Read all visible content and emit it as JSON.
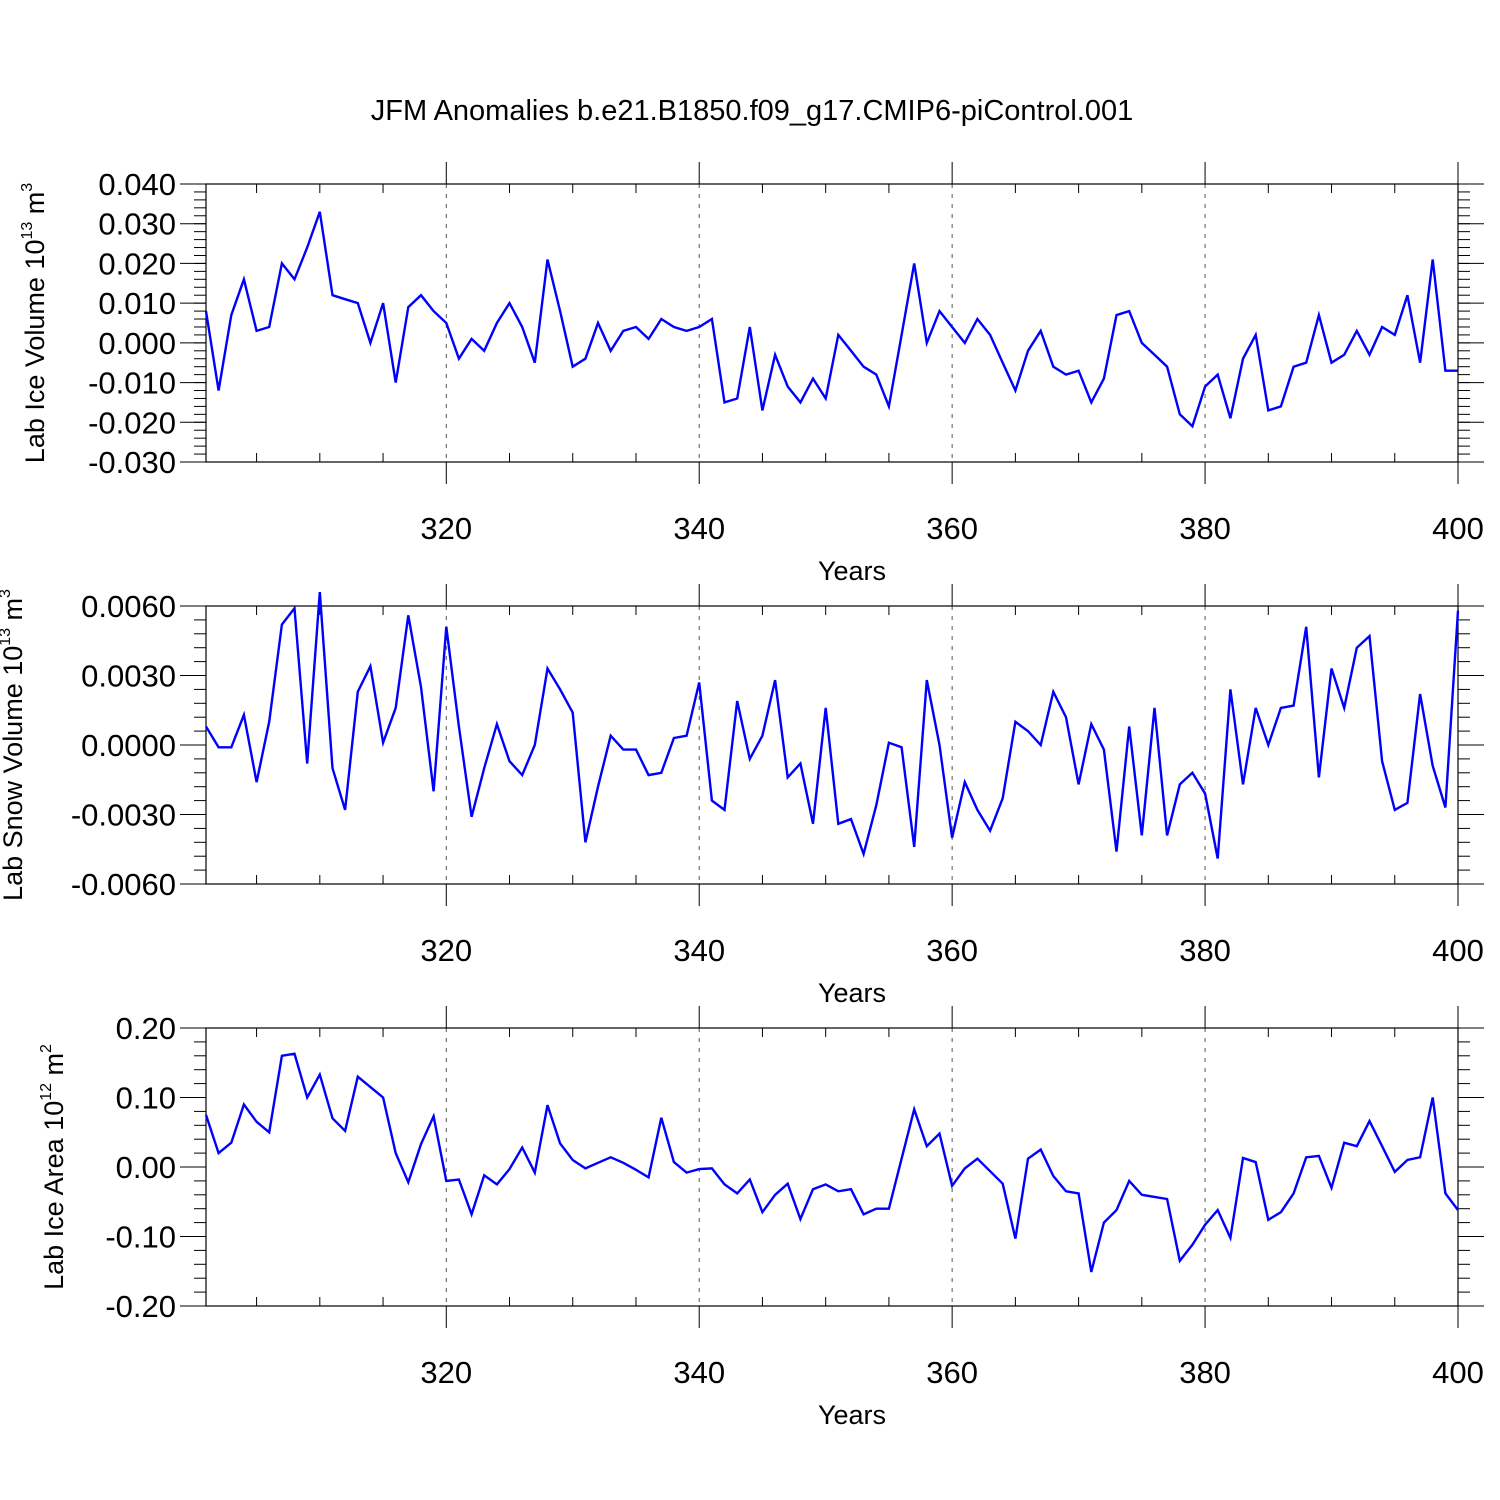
{
  "title": "JFM Anomalies b.e21.B1850.f09_g17.CMIP6-piControl.001",
  "colors": {
    "series": "#0000ff",
    "axis": "#000000",
    "grid": "#555555",
    "background": "#ffffff"
  },
  "chart_data": [
    {
      "type": "line",
      "title": "JFM Anomalies b.e21.B1850.f09_g17.CMIP6-piControl.001",
      "xlabel": "Years",
      "ylabel": {
        "text": "Lab Ice Volume 10",
        "sup": "13",
        "unit": " m",
        "unit_sup": "3"
      },
      "xlim": [
        301,
        400
      ],
      "ylim": [
        -0.03,
        0.04
      ],
      "xticks": [
        320,
        340,
        360,
        380,
        400
      ],
      "yticks": [
        0.04,
        0.03,
        0.02,
        0.01,
        0.0,
        -0.01,
        -0.02,
        -0.03
      ],
      "ytick_labels": [
        "0.040",
        "0.030",
        "0.020",
        "0.010",
        "0.000",
        "-0.010",
        "-0.020",
        "-0.030"
      ],
      "grid": "vertical dashed at major x ticks",
      "series": [
        {
          "start_year": 301,
          "values": [
            0.008,
            -0.012,
            0.007,
            0.016,
            0.003,
            0.004,
            0.02,
            0.016,
            0.024,
            0.033,
            0.012,
            0.011,
            0.01,
            0.0,
            0.01,
            -0.01,
            0.009,
            0.012,
            0.008,
            0.005,
            -0.004,
            0.001,
            -0.002,
            0.005,
            0.01,
            0.004,
            -0.005,
            0.021,
            0.008,
            -0.006,
            -0.004,
            0.005,
            -0.002,
            0.003,
            0.004,
            0.001,
            0.006,
            0.004,
            0.003,
            0.004,
            0.006,
            -0.015,
            -0.014,
            0.004,
            -0.017,
            -0.003,
            -0.011,
            -0.015,
            -0.009,
            -0.014,
            0.002,
            -0.002,
            -0.006,
            -0.008,
            -0.016,
            0.002,
            0.02,
            0.0,
            0.008,
            0.004,
            0.0,
            0.006,
            0.002,
            -0.005,
            -0.012,
            -0.002,
            0.003,
            -0.006,
            -0.008,
            -0.007,
            -0.015,
            -0.009,
            0.007,
            0.008,
            0.0,
            -0.003,
            -0.006,
            -0.018,
            -0.021,
            -0.011,
            -0.008,
            -0.019,
            -0.004,
            0.002,
            -0.017,
            -0.016,
            -0.006,
            -0.005,
            0.007,
            -0.005,
            -0.003,
            0.003,
            -0.003,
            0.004,
            0.002,
            0.012,
            -0.005,
            0.021,
            -0.007,
            -0.007
          ]
        }
      ]
    },
    {
      "type": "line",
      "xlabel": "Years",
      "ylabel": {
        "text": "Lab Snow Volume 10",
        "sup": "13",
        "unit": " m",
        "unit_sup": "3"
      },
      "xlim": [
        301,
        400
      ],
      "ylim": [
        -0.006,
        0.006
      ],
      "xticks": [
        320,
        340,
        360,
        380,
        400
      ],
      "yticks": [
        0.006,
        0.003,
        0.0,
        -0.003,
        -0.006
      ],
      "ytick_labels": [
        "0.0060",
        "0.0030",
        "0.0000",
        "-0.0030",
        "-0.0060"
      ],
      "grid": "vertical dashed at major x ticks",
      "series": [
        {
          "start_year": 301,
          "values": [
            0.0008,
            -0.0001,
            -0.0001,
            0.0013,
            -0.0016,
            0.001,
            0.0052,
            0.0059,
            -0.0008,
            0.0066,
            -0.001,
            -0.0028,
            0.0023,
            0.0034,
            0.0001,
            0.0016,
            0.0056,
            0.0025,
            -0.002,
            0.0051,
            0.0008,
            -0.0031,
            -0.001,
            0.0009,
            -0.0007,
            -0.0013,
            0.0,
            0.0033,
            0.0024,
            0.0014,
            -0.0042,
            -0.0018,
            0.0004,
            -0.0002,
            -0.0002,
            -0.0013,
            -0.0012,
            0.0003,
            0.0004,
            0.0027,
            -0.0024,
            -0.0028,
            0.0019,
            -0.0006,
            0.0004,
            0.0028,
            -0.0014,
            -0.0008,
            -0.0034,
            0.0016,
            -0.0034,
            -0.0032,
            -0.0047,
            -0.0026,
            0.0001,
            -0.0001,
            -0.0044,
            0.0028,
            0.0,
            -0.004,
            -0.0016,
            -0.0028,
            -0.0037,
            -0.0023,
            0.001,
            0.0006,
            0.0,
            0.0023,
            0.0012,
            -0.0017,
            0.0009,
            -0.0002,
            -0.0046,
            0.0008,
            -0.0039,
            0.0016,
            -0.0039,
            -0.0017,
            -0.0012,
            -0.0021,
            -0.0049,
            0.0024,
            -0.0017,
            0.0016,
            0.0,
            0.0016,
            0.0017,
            0.0051,
            -0.0014,
            0.0033,
            0.0016,
            0.0042,
            0.0047,
            -0.0007,
            -0.0028,
            -0.0025,
            0.0022,
            -0.0009,
            -0.0027,
            0.0058
          ]
        }
      ]
    },
    {
      "type": "line",
      "xlabel": "Years",
      "ylabel": {
        "text": "Lab Ice Area 10",
        "sup": "12",
        "unit": " m",
        "unit_sup": "2"
      },
      "xlim": [
        301,
        400
      ],
      "ylim": [
        -0.2,
        0.2
      ],
      "xticks": [
        320,
        340,
        360,
        380,
        400
      ],
      "yticks": [
        0.2,
        0.1,
        0.0,
        -0.1,
        -0.2
      ],
      "ytick_labels": [
        "0.20",
        "0.10",
        "0.00",
        "-0.10",
        "-0.20"
      ],
      "grid": "vertical dashed at major x ticks",
      "series": [
        {
          "start_year": 301,
          "values": [
            0.075,
            0.02,
            0.035,
            0.09,
            0.065,
            0.05,
            0.16,
            0.163,
            0.1,
            0.133,
            0.07,
            0.052,
            0.13,
            0.115,
            0.1,
            0.02,
            -0.022,
            0.033,
            0.073,
            -0.02,
            -0.018,
            -0.068,
            -0.012,
            -0.025,
            -0.003,
            0.028,
            -0.008,
            0.089,
            0.034,
            0.01,
            -0.002,
            0.006,
            0.014,
            0.006,
            -0.004,
            -0.015,
            0.071,
            0.007,
            -0.008,
            -0.003,
            -0.002,
            -0.025,
            -0.038,
            -0.018,
            -0.065,
            -0.04,
            -0.024,
            -0.075,
            -0.032,
            -0.025,
            -0.035,
            -0.032,
            -0.068,
            -0.06,
            -0.06,
            0.012,
            0.083,
            0.03,
            0.048,
            -0.027,
            -0.002,
            0.012,
            -0.006,
            -0.024,
            -0.103,
            0.012,
            0.025,
            -0.013,
            -0.035,
            -0.038,
            -0.151,
            -0.08,
            -0.062,
            -0.02,
            -0.04,
            -0.043,
            -0.046,
            -0.135,
            -0.112,
            -0.083,
            -0.062,
            -0.102,
            0.013,
            0.007,
            -0.076,
            -0.065,
            -0.038,
            0.014,
            0.016,
            -0.03,
            0.035,
            0.03,
            0.066,
            0.03,
            -0.007,
            0.01,
            0.014,
            0.1,
            -0.038,
            -0.062
          ]
        }
      ]
    }
  ]
}
